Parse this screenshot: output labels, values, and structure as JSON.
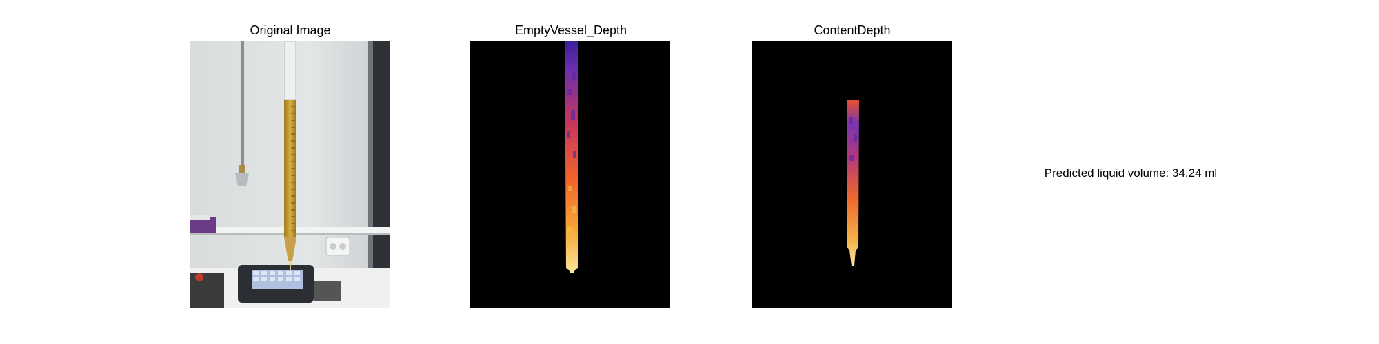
{
  "panels": [
    {
      "title": "Original Image"
    },
    {
      "title": "EmptyVessel_Depth"
    },
    {
      "title": "ContentDepth"
    }
  ],
  "result": {
    "text": "Predicted liquid volume: 34.24 ml"
  }
}
